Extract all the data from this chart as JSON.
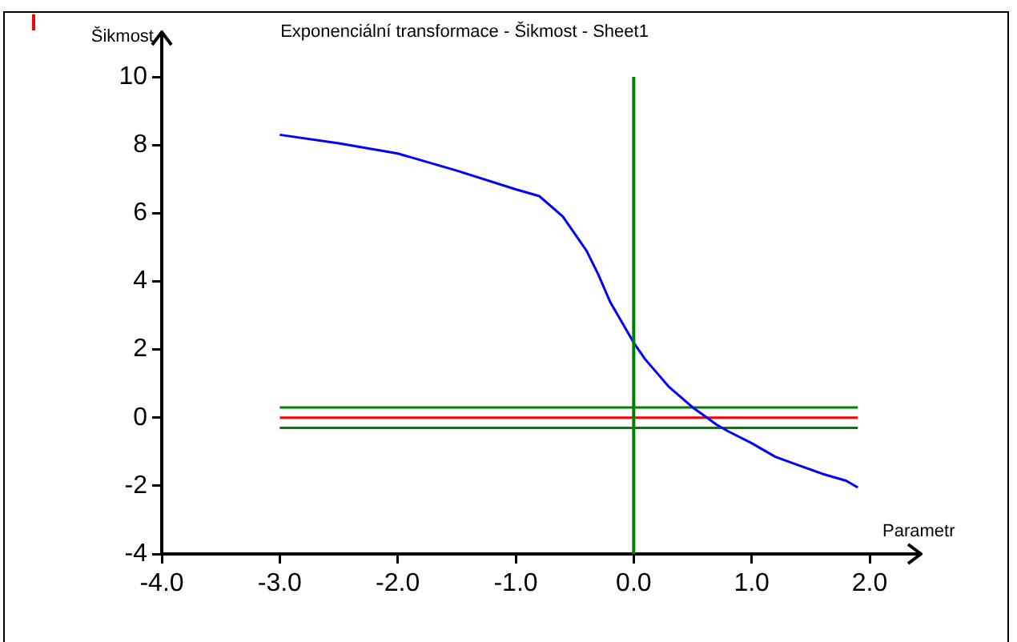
{
  "chart_data": {
    "type": "line",
    "title": "Exponenciální transformace - Šikmost - Sheet1",
    "xlabel": "Parametr",
    "ylabel": "Šikmost",
    "xlim": [
      -4,
      2
    ],
    "xticks": [
      {
        "value": -4,
        "label": "-4.0"
      },
      {
        "value": -3,
        "label": "-3.0"
      },
      {
        "value": -2,
        "label": "-2.0"
      },
      {
        "value": -1,
        "label": "-1.0"
      },
      {
        "value": 0,
        "label": "0.0"
      },
      {
        "value": 1,
        "label": "1.0"
      },
      {
        "value": 2,
        "label": "2.0"
      }
    ],
    "ylim": [
      -4,
      10
    ],
    "yticks": [
      -4,
      -2,
      0,
      2,
      4,
      6,
      8,
      10
    ],
    "grid": false,
    "legend": false,
    "marker": "none",
    "line_style": "solid",
    "series": [
      {
        "color": "#0000ff",
        "x": [
          -3,
          -2.5,
          -2,
          -1.5,
          -1,
          -0.8,
          -0.6,
          -0.4,
          -0.3,
          -0.2,
          -0.1,
          0,
          0.1,
          0.2,
          0.3,
          0.4,
          0.5,
          0.6,
          0.7,
          0.8,
          1,
          1.2,
          1.4,
          1.6,
          1.8,
          1.9
        ],
        "values": [
          8.3,
          8.05,
          7.75,
          7.25,
          6.7,
          6.5,
          5.9,
          4.9,
          4.2,
          3.4,
          2.8,
          2.2,
          1.7,
          1.3,
          0.9,
          0.6,
          0.3,
          0.05,
          -0.2,
          -0.4,
          -0.75,
          -1.15,
          -1.4,
          -1.65,
          -1.85,
          -2.05
        ]
      },
      {
        "color": "#008000",
        "x": [
          -3,
          1.9
        ],
        "values": [
          0.3,
          0.3
        ]
      },
      {
        "color": "#ff0000",
        "x": [
          -3,
          1.9
        ],
        "values": [
          0,
          0
        ]
      },
      {
        "color": "#008000",
        "x": [
          -3,
          1.9
        ],
        "values": [
          -0.3,
          -0.3
        ]
      }
    ],
    "ref_lines": [
      {
        "axis": "x",
        "value": 0,
        "color": "#008000"
      }
    ]
  }
}
